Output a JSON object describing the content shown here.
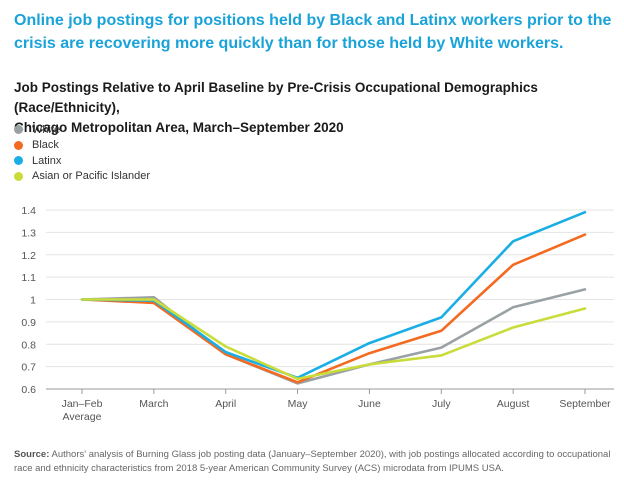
{
  "headline": "Online job postings for positions held by Black and Latinx workers prior to the crisis are recovering more quickly than for those held by White workers.",
  "subtitle_line1": "Job Postings Relative to April Baseline by Pre-Crisis Occupational Demographics (Race/Ethnicity),",
  "subtitle_line2": "Chicago Metropolitan Area, March–September 2020",
  "source_label": "Source:",
  "source_text": "Authors' analysis of Burning Glass job posting data (January–September 2020), with job postings allocated according to occupational race and ethnicity characteristics from 2018 5-year American Community Survey (ACS) microdata from IPUMS USA.",
  "chart_data": {
    "type": "line",
    "categories": [
      "Jan–Feb Average",
      "March",
      "April",
      "May",
      "June",
      "July",
      "August",
      "September"
    ],
    "category_labels": [
      [
        "Jan–Feb",
        "Average"
      ],
      [
        "March"
      ],
      [
        "April"
      ],
      [
        "May"
      ],
      [
        "June"
      ],
      [
        "July"
      ],
      [
        "August"
      ],
      [
        "September"
      ]
    ],
    "yticks": [
      "0.6",
      "0.7",
      "0.8",
      "0.9",
      "1",
      "1.1",
      "1.2",
      "1.3",
      "1.4"
    ],
    "ylim": [
      0.6,
      1.4
    ],
    "legend_position": "top-left",
    "series": [
      {
        "name": "White",
        "color": "#9aa1a4",
        "values": [
          1.0,
          1.01,
          0.755,
          0.625,
          0.71,
          0.785,
          0.965,
          1.045
        ]
      },
      {
        "name": "Black",
        "color": "#f36a21",
        "values": [
          1.0,
          0.985,
          0.755,
          0.63,
          0.76,
          0.86,
          1.155,
          1.29
        ]
      },
      {
        "name": "Latinx",
        "color": "#1aaee5",
        "values": [
          1.0,
          0.995,
          0.765,
          0.65,
          0.805,
          0.92,
          1.26,
          1.39
        ]
      },
      {
        "name": "Asian or Pacific Islander",
        "color": "#c9dc3a",
        "values": [
          1.0,
          1.0,
          0.79,
          0.645,
          0.71,
          0.75,
          0.875,
          0.96
        ]
      }
    ]
  }
}
